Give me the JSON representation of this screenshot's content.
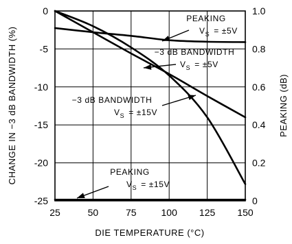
{
  "chart_data": {
    "type": "line",
    "xlabel": "DIE TEMPERATURE (°C)",
    "ylabel_left": "CHANGE IN −3 dB BANDWIDTH (%)",
    "ylabel_right": "PEAKING (dB)",
    "xlim": [
      25,
      150
    ],
    "ylim_left": [
      -25,
      0
    ],
    "ylim_right": [
      0,
      1.0
    ],
    "x_ticks": [
      "25",
      "50",
      "75",
      "100",
      "125",
      "150"
    ],
    "y_ticks_left": [
      "0",
      "-5",
      "-10",
      "-15",
      "-20",
      "-25"
    ],
    "y_ticks_right": [
      "1.0",
      "0.8",
      "0.6",
      "0.4",
      "0.2",
      "0"
    ],
    "grid": true,
    "series": [
      {
        "name": "PEAKING V_S = ±5V",
        "axis": "right",
        "x": [
          25,
          50,
          75,
          100,
          125,
          150
        ],
        "y": [
          0.91,
          0.888,
          0.869,
          0.846,
          0.838,
          0.836
        ]
      },
      {
        "name": "−3 dB BANDWIDTH V_S = ±5V",
        "axis": "left",
        "x": [
          25,
          50,
          75,
          100,
          125,
          150
        ],
        "y": [
          0,
          -2.8,
          -5.6,
          -8.3,
          -11.2,
          -14
        ]
      },
      {
        "name": "−3 dB BANDWIDTH V_S = ±15V",
        "axis": "left",
        "x": [
          25,
          50,
          75,
          100,
          125,
          150
        ],
        "y": [
          0,
          -2,
          -4.8,
          -8.5,
          -14,
          -22.8
        ]
      },
      {
        "name": "PEAKING V_S = ±15V",
        "axis": "right",
        "x": [
          25,
          50,
          75,
          100,
          125,
          150
        ],
        "y": [
          0.006,
          0.006,
          0.006,
          0.006,
          0.006,
          0.006
        ]
      }
    ],
    "annotations": [
      {
        "label": "PEAKING",
        "supply": "= ±5V",
        "points_to_series": 0
      },
      {
        "label": "−3 dB BANDWIDTH",
        "supply": "= ±5V",
        "points_to_series": 1
      },
      {
        "label": "−3 dB BANDWIDTH",
        "supply": "= ±15V",
        "points_to_series": 2
      },
      {
        "label": "PEAKING",
        "supply": "= ±15V",
        "points_to_series": 3
      }
    ],
    "supply_symbol": "V",
    "supply_subscript": "S"
  }
}
